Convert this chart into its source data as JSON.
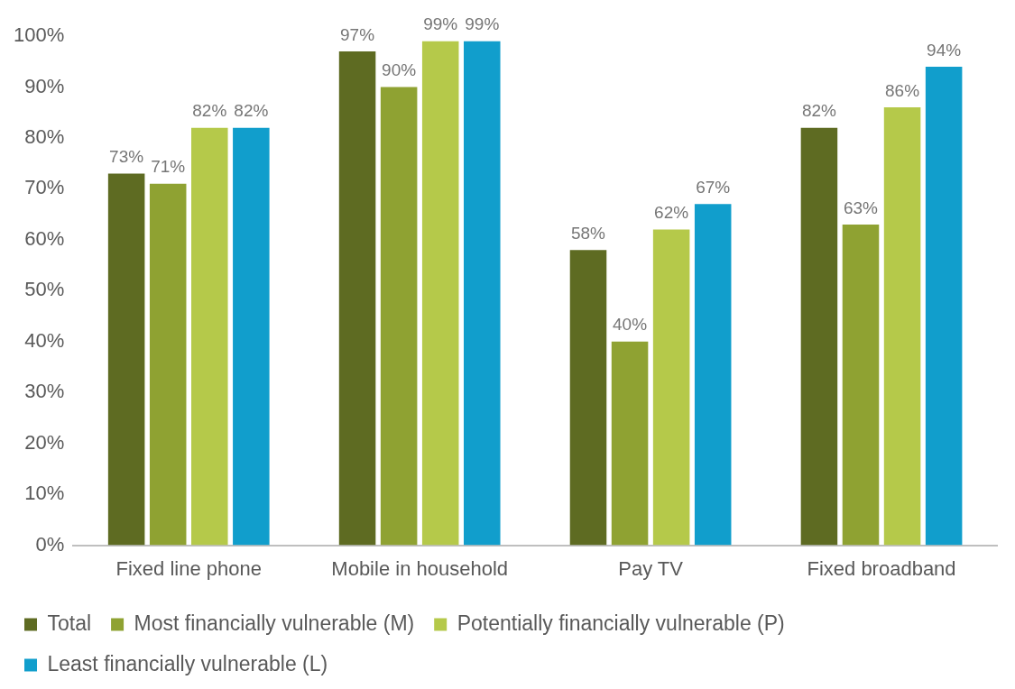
{
  "chart_data": {
    "type": "bar",
    "categories": [
      "Fixed line phone",
      "Mobile in household",
      "Pay TV",
      "Fixed broadband"
    ],
    "series": [
      {
        "name": "Total",
        "color": "#5e6b22",
        "values": [
          73,
          97,
          58,
          82
        ],
        "value_labels": [
          "73%",
          "97%",
          "58%",
          "82%"
        ]
      },
      {
        "name": "Most financially vulnerable (M)",
        "color": "#8fa232",
        "values": [
          71,
          90,
          40,
          63
        ],
        "value_labels": [
          "71%",
          "90%",
          "40%",
          "63%"
        ]
      },
      {
        "name": "Potentially financially vulnerable (P)",
        "color": "#b5c94a",
        "values": [
          82,
          99,
          62,
          86
        ],
        "value_labels": [
          "82%",
          "99%",
          "62%",
          "86%"
        ]
      },
      {
        "name": "Least financially vulnerable (L)",
        "color": "#119ecc",
        "values": [
          82,
          99,
          67,
          94
        ],
        "value_labels": [
          "82%",
          "99%",
          "67%",
          "94%"
        ]
      }
    ],
    "ylim": [
      0,
      100
    ],
    "yticks": [
      {
        "value": 0,
        "label": "0%"
      },
      {
        "value": 10,
        "label": "10%"
      },
      {
        "value": 20,
        "label": "20%"
      },
      {
        "value": 30,
        "label": "30%"
      },
      {
        "value": 40,
        "label": "40%"
      },
      {
        "value": 50,
        "label": "50%"
      },
      {
        "value": 60,
        "label": "60%"
      },
      {
        "value": 70,
        "label": "70%"
      },
      {
        "value": 80,
        "label": "80%"
      },
      {
        "value": 90,
        "label": "90%"
      },
      {
        "value": 100,
        "label": "100%"
      }
    ],
    "grid": false,
    "legend": "bottom"
  }
}
